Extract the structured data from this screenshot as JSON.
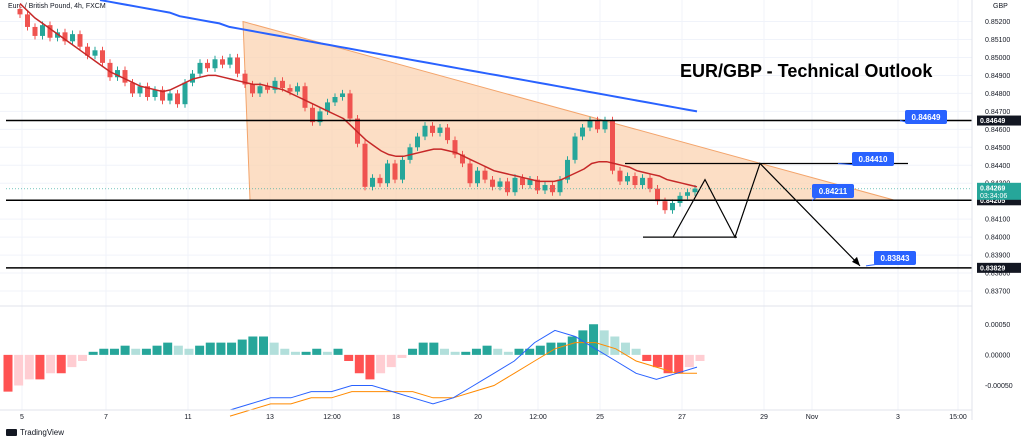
{
  "header": {
    "symbol_label": "Euro / British Pound, 4h, FXCM",
    "currency_label": "GBP",
    "brand": "TradingView"
  },
  "colors": {
    "up": "#26a69a",
    "down": "#ef5350",
    "ma_fast": "#c62828",
    "ma_slow": "#2962ff",
    "triangle_fill": "#fbd3b2",
    "triangle_edge": "#f3a46b",
    "axis_box": "#131722",
    "callout": "#2962ff",
    "macd_line": "#2962ff",
    "signal_line": "#ff8a00"
  },
  "chart_data": [
    {
      "type": "candlestick",
      "title": "EUR/GBP - Technical Outlook",
      "instrument": "EUR/GBP",
      "timeframe": "4h",
      "x_ticks": [
        "5",
        "7",
        "11",
        "13",
        "12:00",
        "18",
        "20",
        "12:00",
        "25",
        "27",
        "29",
        "Nov",
        "3",
        "15:00"
      ],
      "y_ticks": [
        "0.85200",
        "0.85100",
        "0.85000",
        "0.84900",
        "0.84800",
        "0.84700",
        "0.84600",
        "0.84500",
        "0.84400",
        "0.84300",
        "0.84100",
        "0.84000",
        "0.83900",
        "0.83800",
        "0.83700"
      ],
      "ylim": [
        0.8365,
        0.8532
      ],
      "closes": [
        0.8524,
        0.8517,
        0.8512,
        0.8518,
        0.8511,
        0.8514,
        0.8509,
        0.8513,
        0.8506,
        0.8501,
        0.8504,
        0.8497,
        0.8489,
        0.8493,
        0.8486,
        0.848,
        0.8484,
        0.8478,
        0.8482,
        0.8476,
        0.848,
        0.8474,
        0.8486,
        0.8491,
        0.8497,
        0.8494,
        0.8499,
        0.8496,
        0.85,
        0.8491,
        0.8485,
        0.848,
        0.8484,
        0.8482,
        0.8487,
        0.8483,
        0.8481,
        0.8484,
        0.8472,
        0.8464,
        0.847,
        0.8475,
        0.8478,
        0.848,
        0.8466,
        0.8452,
        0.8428,
        0.8433,
        0.843,
        0.8441,
        0.8432,
        0.8443,
        0.845,
        0.8456,
        0.8462,
        0.8458,
        0.8461,
        0.8454,
        0.8446,
        0.8441,
        0.843,
        0.8437,
        0.8432,
        0.8428,
        0.8431,
        0.8425,
        0.8433,
        0.8429,
        0.8432,
        0.8426,
        0.8429,
        0.8425,
        0.8432,
        0.8443,
        0.8456,
        0.8461,
        0.8465,
        0.846,
        0.8465,
        0.8437,
        0.8431,
        0.8434,
        0.8429,
        0.8433,
        0.8427,
        0.842,
        0.8415,
        0.8419,
        0.8423,
        0.8425,
        0.8427
      ],
      "candle_open_offset": 0.0003,
      "ma_fast": [
        0.853,
        0.8526,
        0.8522,
        0.8519,
        0.8516,
        0.8513,
        0.851,
        0.8507,
        0.8504,
        0.8501,
        0.8498,
        0.8495,
        0.8492,
        0.849,
        0.8488,
        0.8486,
        0.8484,
        0.8483,
        0.8482,
        0.8481,
        0.8482,
        0.8484,
        0.8486,
        0.8488,
        0.8489,
        0.849,
        0.849,
        0.8489,
        0.8488,
        0.8487,
        0.8486,
        0.8485,
        0.8485,
        0.8484,
        0.8483,
        0.8482,
        0.848,
        0.8478,
        0.8476,
        0.8474,
        0.8472,
        0.847,
        0.8468,
        0.8466,
        0.8462,
        0.8458,
        0.8454,
        0.8451,
        0.8448,
        0.8446,
        0.8445,
        0.8445,
        0.8446,
        0.8447,
        0.8448,
        0.8449,
        0.8449,
        0.8448,
        0.8447,
        0.8445,
        0.8443,
        0.8441,
        0.8439,
        0.8437,
        0.8436,
        0.8435,
        0.8434,
        0.8433,
        0.8432,
        0.8431,
        0.8431,
        0.8431,
        0.8432,
        0.8434,
        0.8436,
        0.8438,
        0.8441,
        0.8442,
        0.8442,
        0.8441,
        0.844,
        0.8439,
        0.8437,
        0.8436,
        0.8435,
        0.8434,
        0.8432,
        0.8431,
        0.843,
        0.8429,
        0.8428
      ],
      "ma_slow": [
        0.8532,
        0.8531,
        0.853,
        0.8529,
        0.8528,
        0.8527,
        0.8526,
        0.8525,
        0.8523,
        0.8522,
        0.8521,
        0.852,
        0.8519,
        0.8517,
        0.8516,
        0.8515,
        0.8514,
        0.8513,
        0.8512,
        0.8511,
        0.851,
        0.8509,
        0.8508,
        0.8507,
        0.8506,
        0.8505,
        0.8504,
        0.8503,
        0.8502,
        0.8501,
        0.85,
        0.8499,
        0.8498,
        0.8497,
        0.8496,
        0.8495,
        0.8494,
        0.8493,
        0.8492,
        0.8491,
        0.849,
        0.8489,
        0.8488,
        0.8487,
        0.8486,
        0.8485,
        0.8484,
        0.8483,
        0.8482,
        0.8481,
        0.848,
        0.8479,
        0.8478,
        0.8477,
        0.8476,
        0.8475,
        0.8474,
        0.8473,
        0.8472,
        0.8471,
        0.847
      ],
      "levels": [
        {
          "value": 0.84649,
          "label": "0.84649"
        },
        {
          "value": 0.84205,
          "label": "0.84205"
        },
        {
          "value": 0.83829,
          "label": "0.83829"
        }
      ],
      "last_price": {
        "label": "0.84269",
        "countdown": "03:34:06"
      },
      "callouts": [
        "0.84649",
        "0.84410",
        "0.84211",
        "0.83843"
      ]
    },
    {
      "type": "macd",
      "y_ticks": [
        "0.00050",
        "0.00000",
        "-0.00050"
      ],
      "ylim": [
        -0.0009,
        0.0007
      ],
      "histogram": [
        -0.0006,
        -0.0005,
        -0.0004,
        -0.0004,
        -0.0003,
        -0.0003,
        -0.0002,
        -0.0001,
        5e-05,
        0.0001,
        0.0001,
        0.00015,
        0.0001,
        0.0001,
        0.00015,
        0.0002,
        0.00015,
        0.0001,
        0.00015,
        0.0002,
        0.0002,
        0.0002,
        0.00025,
        0.0003,
        0.0003,
        0.0002,
        0.0001,
        5e-05,
        5e-05,
        0.0001,
        5e-05,
        0.0001,
        -0.0001,
        -0.0003,
        -0.0004,
        -0.0003,
        -0.0002,
        -5e-05,
        0.0001,
        0.0002,
        0.0002,
        0.0001,
        5e-05,
        5e-05,
        0.0001,
        0.00015,
        0.0001,
        5e-05,
        0.0001,
        0.0001,
        0.00015,
        0.0002,
        0.0002,
        0.0003,
        0.0004,
        0.0005,
        0.0004,
        0.0003,
        0.0002,
        0.0001,
        -0.0001,
        -0.0002,
        -0.0003,
        -0.0003,
        -0.0002,
        -0.0001
      ],
      "macd": [
        -0.0009,
        -0.0008,
        -0.0007,
        -0.0007,
        -0.0006,
        -0.0006,
        -0.0005,
        -0.0005,
        -0.0006,
        -0.0007,
        -0.0008,
        -0.0007,
        -0.0005,
        -0.0003,
        -0.0001,
        0.0002,
        0.0004,
        0.0003,
        0.0001,
        -0.0001,
        -0.0003,
        -0.0004,
        -0.0003,
        -0.0002
      ],
      "signal": [
        -0.001,
        -0.0009,
        -0.0008,
        -0.0008,
        -0.0007,
        -0.0007,
        -0.0006,
        -0.0006,
        -0.0006,
        -0.0006,
        -0.0007,
        -0.0007,
        -0.0006,
        -0.0005,
        -0.0003,
        -0.0001,
        0.0001,
        0.0002,
        0.0002,
        0.0001,
        -0.0001,
        -0.0002,
        -0.0003,
        -0.0003
      ]
    }
  ]
}
